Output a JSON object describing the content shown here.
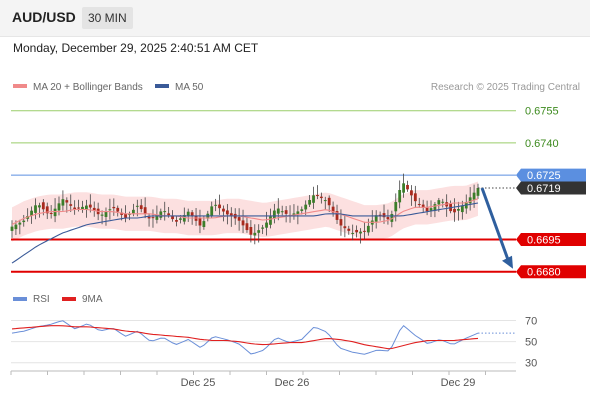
{
  "header": {
    "pair": "AUD/USD",
    "timeframe": "30 MIN"
  },
  "datetime": "Monday, December 29, 2025 2:40:51 AM CET",
  "legend": {
    "items": [
      {
        "label": "MA 20 + Bollinger Bands",
        "color": "#f08a8a"
      },
      {
        "label": "MA 50",
        "color": "#3a5a98"
      }
    ],
    "credit": "Research © 2025 Trading Central"
  },
  "rsi_legend": {
    "items": [
      {
        "label": "RSI",
        "color": "#6a8fd8"
      },
      {
        "label": "9MA",
        "color": "#e02020"
      }
    ]
  },
  "chart_data": [
    {
      "type": "line",
      "title": "AUD/USD 30 MIN",
      "ylim": [
        0.6678,
        0.676
      ],
      "x_labels": [
        "Dec 25",
        "Dec 26",
        "Dec 29"
      ],
      "levels": [
        {
          "value": 0.6755,
          "label": "0.6755",
          "color": "#9acd6a",
          "kind": "target"
        },
        {
          "value": 0.674,
          "label": "0.6740",
          "color": "#9acd6a",
          "kind": "target"
        },
        {
          "value": 0.6725,
          "label": "0.6725",
          "color": "#5b8fe0",
          "kind": "pivot"
        },
        {
          "value": 0.6719,
          "label": "0.6719",
          "color": "#333333",
          "kind": "last-price"
        },
        {
          "value": 0.6695,
          "label": "0.6695",
          "color": "#e00000",
          "kind": "support"
        },
        {
          "value": 0.668,
          "label": "0.6680",
          "color": "#e00000",
          "kind": "support"
        }
      ],
      "price_path": [
        0.6701,
        0.6704,
        0.6712,
        0.6706,
        0.6714,
        0.6709,
        0.6711,
        0.6706,
        0.671,
        0.6705,
        0.6711,
        0.6704,
        0.6709,
        0.6703,
        0.6708,
        0.6701,
        0.6712,
        0.6707,
        0.6704,
        0.6697,
        0.6701,
        0.671,
        0.6706,
        0.6709,
        0.6716,
        0.6713,
        0.6702,
        0.6698,
        0.6699,
        0.6707,
        0.6704,
        0.6722,
        0.6713,
        0.6708,
        0.6714,
        0.6707,
        0.6712,
        0.6719
      ],
      "ma20_path": [
        0.6702,
        0.6705,
        0.6707,
        0.6708,
        0.6708,
        0.6709,
        0.6709,
        0.6708,
        0.6708,
        0.6707,
        0.6707,
        0.6707,
        0.6706,
        0.6706,
        0.6705,
        0.6705,
        0.6705,
        0.6706,
        0.6706,
        0.6705,
        0.6704,
        0.6705,
        0.6706,
        0.6707,
        0.6708,
        0.6709,
        0.6707,
        0.6705,
        0.6703,
        0.6703,
        0.6704,
        0.6708,
        0.671,
        0.671,
        0.6711,
        0.6712,
        0.6712,
        0.6714
      ],
      "ma50_path": [
        0.6684,
        0.6688,
        0.6692,
        0.6695,
        0.6698,
        0.67,
        0.6702,
        0.6703,
        0.6704,
        0.6705,
        0.6705,
        0.6706,
        0.6706,
        0.6706,
        0.6706,
        0.6706,
        0.6706,
        0.6706,
        0.6706,
        0.6706,
        0.6706,
        0.6706,
        0.6706,
        0.6706,
        0.6706,
        0.6707,
        0.6707,
        0.6706,
        0.6706,
        0.6706,
        0.6706,
        0.6706,
        0.6707,
        0.6708,
        0.6709,
        0.671,
        0.6711,
        0.6712
      ],
      "bb_width": 0.0008,
      "projection": {
        "from": 0.6719,
        "to": 0.668
      }
    },
    {
      "type": "line",
      "title": "RSI",
      "ylim": [
        25,
        78
      ],
      "y_ticks": [
        70,
        50,
        30
      ],
      "rsi_path": [
        58,
        60,
        64,
        66,
        70,
        62,
        67,
        60,
        63,
        55,
        60,
        50,
        54,
        47,
        52,
        44,
        55,
        52,
        48,
        38,
        42,
        54,
        49,
        52,
        64,
        59,
        44,
        40,
        38,
        42,
        41,
        66,
        56,
        48,
        52,
        47,
        53,
        58
      ],
      "ma9_path": [
        62,
        63,
        64,
        65,
        65,
        64,
        64,
        63,
        62,
        60,
        59,
        57,
        56,
        55,
        54,
        52,
        51,
        51,
        50,
        48,
        47,
        48,
        49,
        49,
        51,
        53,
        52,
        50,
        47,
        45,
        43,
        46,
        49,
        51,
        51,
        51,
        52,
        53
      ]
    }
  ]
}
